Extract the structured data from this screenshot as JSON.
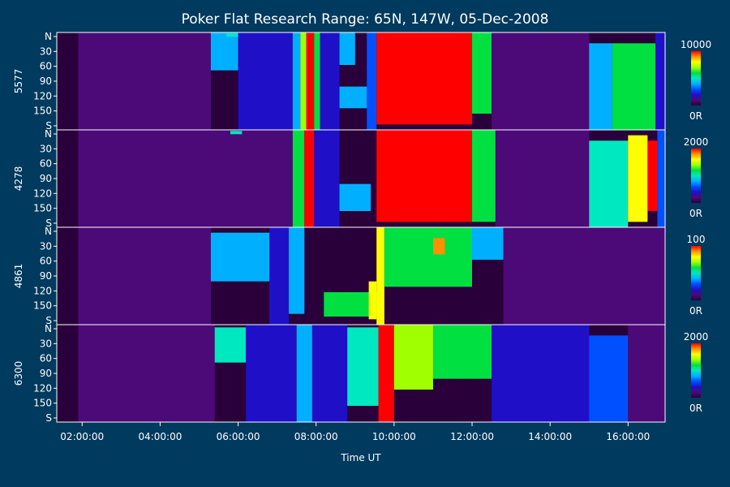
{
  "chart_data": {
    "type": "heatmap",
    "title": "Poker Flat Research Range: 65N, 147W, 05-Dec-2008",
    "xlabel": "Time UT",
    "x_ticks": [
      "02:00:00",
      "04:00:00",
      "06:00:00",
      "08:00:00",
      "10:00:00",
      "12:00:00",
      "14:00:00",
      "16:00:00"
    ],
    "xlim": [
      1.35,
      16.95
    ],
    "y_ticks": [
      "N",
      "30",
      "60",
      "90",
      "120",
      "150",
      "S"
    ],
    "ylim": [
      0,
      180
    ],
    "colormap": [
      "#2a003a",
      "#4b0a78",
      "#1f10c8",
      "#0050ff",
      "#00b0ff",
      "#00e8c0",
      "#00e040",
      "#a0ff00",
      "#ffff00",
      "#ff9000",
      "#ff0000"
    ],
    "series": [
      {
        "name": "5577",
        "cmin_label": "0R",
        "cmax_label": "10000",
        "features": [
          {
            "t0": 1.35,
            "t1": 1.9,
            "a0": 0,
            "a1": 180,
            "v": 0.02
          },
          {
            "t0": 1.9,
            "t1": 5.3,
            "a0": 0,
            "a1": 180,
            "v": 0.1
          },
          {
            "t0": 5.3,
            "t1": 6.0,
            "a0": 0,
            "a1": 70,
            "v": 0.35
          },
          {
            "t0": 5.7,
            "t1": 6.1,
            "a0": 2,
            "a1": 8,
            "v": 0.5
          },
          {
            "t0": 6.0,
            "t1": 7.4,
            "a0": 0,
            "a1": 180,
            "v": 0.15
          },
          {
            "t0": 7.4,
            "t1": 7.6,
            "a0": 0,
            "a1": 180,
            "v": 0.4
          },
          {
            "t0": 7.6,
            "t1": 7.75,
            "a0": 0,
            "a1": 180,
            "v": 0.7
          },
          {
            "t0": 7.75,
            "t1": 7.95,
            "a0": 0,
            "a1": 180,
            "v": 0.97
          },
          {
            "t0": 7.95,
            "t1": 8.1,
            "a0": 0,
            "a1": 180,
            "v": 0.6
          },
          {
            "t0": 8.1,
            "t1": 8.6,
            "a0": 0,
            "a1": 180,
            "v": 0.2
          },
          {
            "t0": 8.6,
            "t1": 9.3,
            "a0": 100,
            "a1": 140,
            "v": 0.4
          },
          {
            "t0": 8.6,
            "t1": 9.0,
            "a0": 0,
            "a1": 60,
            "v": 0.4
          },
          {
            "t0": 9.3,
            "t1": 9.55,
            "a0": 0,
            "a1": 180,
            "v": 0.3
          },
          {
            "t0": 9.55,
            "t1": 12.0,
            "a0": 0,
            "a1": 170,
            "v": 0.97
          },
          {
            "t0": 12.0,
            "t1": 12.5,
            "a0": 0,
            "a1": 150,
            "v": 0.55
          },
          {
            "t0": 12.5,
            "t1": 15.0,
            "a0": 0,
            "a1": 180,
            "v": 0.12
          },
          {
            "t0": 15.0,
            "t1": 15.6,
            "a0": 20,
            "a1": 180,
            "v": 0.35
          },
          {
            "t0": 15.6,
            "t1": 16.7,
            "a0": 20,
            "a1": 180,
            "v": 0.55
          },
          {
            "t0": 16.7,
            "t1": 16.95,
            "a0": 0,
            "a1": 180,
            "v": 0.2
          }
        ]
      },
      {
        "name": "4278",
        "cmin_label": "0R",
        "cmax_label": "2000",
        "features": [
          {
            "t0": 1.35,
            "t1": 1.9,
            "a0": 0,
            "a1": 180,
            "v": 0.02
          },
          {
            "t0": 1.9,
            "t1": 7.4,
            "a0": 0,
            "a1": 180,
            "v": 0.12
          },
          {
            "t0": 5.8,
            "t1": 6.1,
            "a0": 2,
            "a1": 8,
            "v": 0.45
          },
          {
            "t0": 7.4,
            "t1": 7.7,
            "a0": 0,
            "a1": 180,
            "v": 0.55
          },
          {
            "t0": 7.7,
            "t1": 7.95,
            "a0": 0,
            "a1": 180,
            "v": 0.95
          },
          {
            "t0": 7.95,
            "t1": 8.6,
            "a0": 0,
            "a1": 180,
            "v": 0.2
          },
          {
            "t0": 8.6,
            "t1": 9.4,
            "a0": 100,
            "a1": 150,
            "v": 0.4
          },
          {
            "t0": 9.55,
            "t1": 12.0,
            "a0": 0,
            "a1": 170,
            "v": 0.97
          },
          {
            "t0": 12.0,
            "t1": 12.6,
            "a0": 0,
            "a1": 170,
            "v": 0.6
          },
          {
            "t0": 12.6,
            "t1": 15.0,
            "a0": 0,
            "a1": 180,
            "v": 0.12
          },
          {
            "t0": 15.0,
            "t1": 16.0,
            "a0": 20,
            "a1": 180,
            "v": 0.45
          },
          {
            "t0": 16.0,
            "t1": 16.5,
            "a0": 10,
            "a1": 170,
            "v": 0.8
          },
          {
            "t0": 16.5,
            "t1": 16.75,
            "a0": 20,
            "a1": 150,
            "v": 0.95
          },
          {
            "t0": 16.75,
            "t1": 16.95,
            "a0": 0,
            "a1": 180,
            "v": 0.3
          }
        ]
      },
      {
        "name": "4861",
        "cmin_label": "0R",
        "cmax_label": "100",
        "features": [
          {
            "t0": 1.35,
            "t1": 1.9,
            "a0": 0,
            "a1": 180,
            "v": 0.02
          },
          {
            "t0": 1.9,
            "t1": 5.3,
            "a0": 0,
            "a1": 180,
            "v": 0.05
          },
          {
            "t0": 5.3,
            "t1": 6.8,
            "a0": 10,
            "a1": 100,
            "v": 0.4
          },
          {
            "t0": 6.8,
            "t1": 7.3,
            "a0": 0,
            "a1": 180,
            "v": 0.2
          },
          {
            "t0": 7.3,
            "t1": 7.7,
            "a0": 0,
            "a1": 160,
            "v": 0.4
          },
          {
            "t0": 8.2,
            "t1": 9.6,
            "a0": 120,
            "a1": 165,
            "v": 0.55
          },
          {
            "t0": 9.35,
            "t1": 9.55,
            "a0": 100,
            "a1": 170,
            "v": 0.75
          },
          {
            "t0": 9.55,
            "t1": 9.75,
            "a0": 0,
            "a1": 180,
            "v": 0.75
          },
          {
            "t0": 9.75,
            "t1": 12.0,
            "a0": 0,
            "a1": 110,
            "v": 0.55
          },
          {
            "t0": 11.0,
            "t1": 11.3,
            "a0": 20,
            "a1": 50,
            "v": 0.85
          },
          {
            "t0": 12.0,
            "t1": 12.8,
            "a0": 0,
            "a1": 60,
            "v": 0.35
          },
          {
            "t0": 12.8,
            "t1": 16.95,
            "a0": 0,
            "a1": 180,
            "v": 0.05
          }
        ]
      },
      {
        "name": "6300",
        "cmin_label": "0R",
        "cmax_label": "2000",
        "features": [
          {
            "t0": 1.35,
            "t1": 1.9,
            "a0": 0,
            "a1": 180,
            "v": 0.02
          },
          {
            "t0": 1.9,
            "t1": 5.4,
            "a0": 0,
            "a1": 180,
            "v": 0.12
          },
          {
            "t0": 5.4,
            "t1": 6.2,
            "a0": 5,
            "a1": 70,
            "v": 0.45
          },
          {
            "t0": 6.2,
            "t1": 7.5,
            "a0": 0,
            "a1": 180,
            "v": 0.18
          },
          {
            "t0": 7.5,
            "t1": 7.9,
            "a0": 0,
            "a1": 180,
            "v": 0.42
          },
          {
            "t0": 7.9,
            "t1": 8.8,
            "a0": 0,
            "a1": 180,
            "v": 0.2
          },
          {
            "t0": 8.8,
            "t1": 9.6,
            "a0": 5,
            "a1": 150,
            "v": 0.45
          },
          {
            "t0": 9.6,
            "t1": 10.0,
            "a0": 0,
            "a1": 180,
            "v": 0.97
          },
          {
            "t0": 10.0,
            "t1": 11.0,
            "a0": 0,
            "a1": 120,
            "v": 0.7
          },
          {
            "t0": 11.0,
            "t1": 12.5,
            "a0": 0,
            "a1": 100,
            "v": 0.55
          },
          {
            "t0": 12.5,
            "t1": 15.0,
            "a0": 0,
            "a1": 180,
            "v": 0.15
          },
          {
            "t0": 15.0,
            "t1": 16.0,
            "a0": 20,
            "a1": 180,
            "v": 0.3
          },
          {
            "t0": 16.0,
            "t1": 16.95,
            "a0": 0,
            "a1": 180,
            "v": 0.12
          }
        ]
      }
    ]
  }
}
